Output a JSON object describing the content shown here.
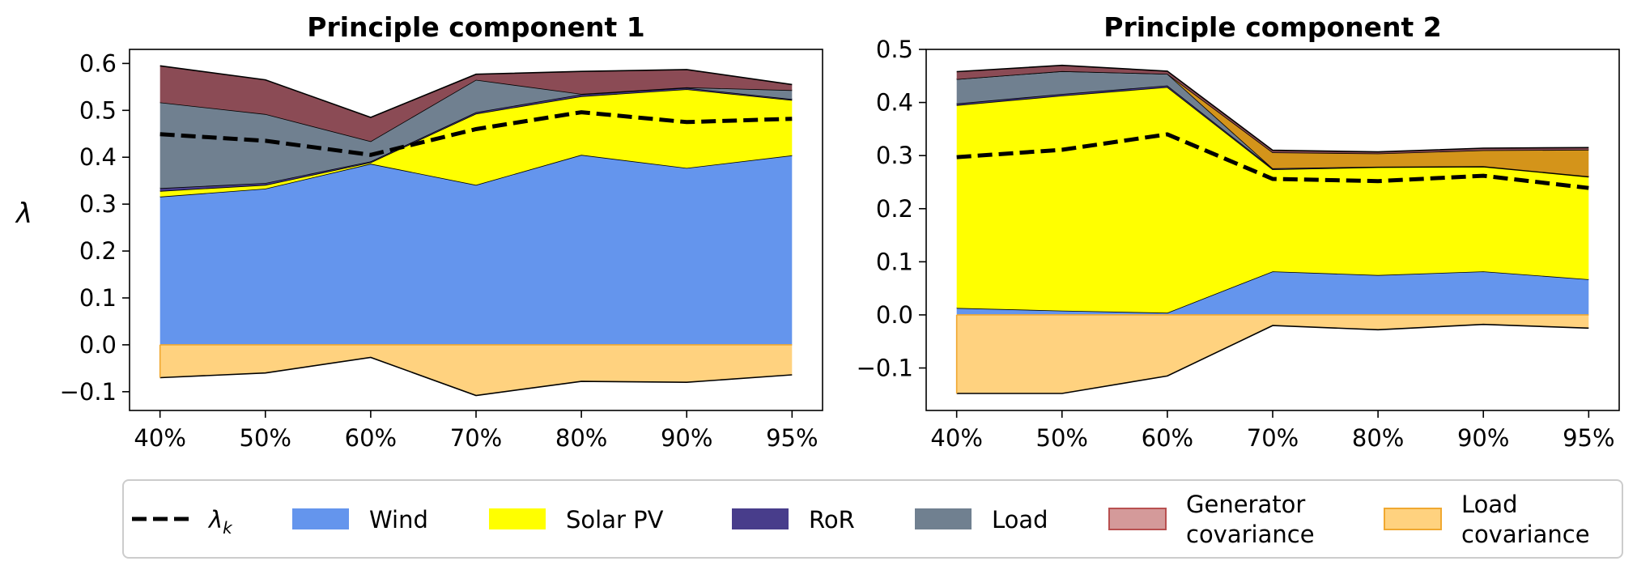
{
  "chart_data": {
    "type": "area",
    "stacked": true,
    "ylabel": "λ",
    "categories": [
      "40%",
      "50%",
      "60%",
      "70%",
      "80%",
      "90%",
      "95%"
    ],
    "legend": {
      "placement": "bottom",
      "entries": [
        {
          "key": "lambda_k",
          "label": "λ",
          "sub": "k",
          "style": "dashed-line",
          "color": "#000000"
        },
        {
          "key": "wind",
          "label": "Wind",
          "color": "#6495ED"
        },
        {
          "key": "solar",
          "label": "Solar PV",
          "color": "#FFFF00"
        },
        {
          "key": "ror",
          "label": "RoR",
          "color": "#483D8B"
        },
        {
          "key": "load",
          "label": "Load",
          "color": "#708090"
        },
        {
          "key": "gencov",
          "label": "Generator covariance",
          "lines": [
            "Generator",
            "covariance"
          ],
          "color": "#D49A9A"
        },
        {
          "key": "loadcov",
          "label": "Load covariance",
          "lines": [
            "Load",
            "covariance"
          ],
          "color": "#FFD27F"
        }
      ]
    },
    "charts": [
      {
        "title": "Principle component 1",
        "ylim": [
          -0.14,
          0.63
        ],
        "yticks": [
          -0.1,
          0.0,
          0.1,
          0.2,
          0.3,
          0.4,
          0.5,
          0.6
        ],
        "ytick_labels": [
          "−0.1",
          "0.0",
          "0.1",
          "0.2",
          "0.3",
          "0.4",
          "0.5",
          "0.6"
        ],
        "positive_series": [
          {
            "key": "wind",
            "color": "#6495ED",
            "values": [
              0.316,
              0.333,
              0.386,
              0.341,
              0.405,
              0.377,
              0.404
            ]
          },
          {
            "key": "solar",
            "color": "#FFFF00",
            "values": [
              0.012,
              0.008,
              0.003,
              0.152,
              0.125,
              0.168,
              0.118
            ]
          },
          {
            "key": "ror",
            "color": "#483D8B",
            "values": [
              0.006,
              0.004,
              0.002,
              0.003,
              0.004,
              0.003,
              0.002
            ]
          },
          {
            "key": "load",
            "color": "#708090",
            "values": [
              0.183,
              0.147,
              0.043,
              0.069,
              0.001,
              0.001,
              0.019
            ]
          },
          {
            "key": "gencov_generators",
            "color": "#8B4B55",
            "values": [
              0.078,
              0.073,
              0.051,
              0.012,
              0.048,
              0.038,
              0.012
            ]
          }
        ],
        "negative_series": [
          {
            "key": "loadcov",
            "color": "#FFD27F",
            "values": [
              -0.07,
              -0.06,
              -0.027,
              -0.108,
              -0.078,
              -0.08,
              -0.064
            ]
          }
        ],
        "lambda_k": [
          0.449,
          0.435,
          0.405,
          0.46,
          0.496,
          0.475,
          0.482
        ]
      },
      {
        "title": "Principle component 2",
        "ylim": [
          -0.18,
          0.5
        ],
        "yticks": [
          -0.1,
          0.0,
          0.1,
          0.2,
          0.3,
          0.4,
          0.5
        ],
        "ytick_labels": [
          "−0.1",
          "0.0",
          "0.1",
          "0.2",
          "0.3",
          "0.4",
          "0.5"
        ],
        "positive_series": [
          {
            "key": "wind",
            "color": "#6495ED",
            "values": [
              0.013,
              0.008,
              0.004,
              0.082,
              0.075,
              0.082,
              0.067
            ]
          },
          {
            "key": "solar",
            "color": "#FFFF00",
            "values": [
              0.382,
              0.405,
              0.425,
              0.192,
              0.203,
              0.197,
              0.193
            ]
          },
          {
            "key": "ror",
            "color": "#483D8B",
            "values": [
              0.003,
              0.003,
              0.003,
              0.002,
              0.001,
              0.001,
              0.001
            ]
          },
          {
            "key": "load",
            "color": "#708090",
            "values": [
              0.046,
              0.043,
              0.022,
              0.0,
              0.0,
              0.0,
              0.0
            ]
          },
          {
            "key": "gencov_gold",
            "color": "#D4941A",
            "values": [
              0.0,
              0.0,
              0.0,
              0.03,
              0.025,
              0.03,
              0.05
            ]
          },
          {
            "key": "gencov_generators",
            "color": "#8B4B55",
            "values": [
              0.014,
              0.011,
              0.005,
              0.004,
              0.003,
              0.004,
              0.004
            ]
          }
        ],
        "negative_series": [
          {
            "key": "loadcov",
            "color": "#FFD27F",
            "values": [
              -0.148,
              -0.148,
              -0.115,
              -0.02,
              -0.028,
              -0.018,
              -0.025
            ]
          }
        ],
        "lambda_k": [
          0.297,
          0.311,
          0.34,
          0.256,
          0.252,
          0.262,
          0.239
        ]
      }
    ]
  }
}
